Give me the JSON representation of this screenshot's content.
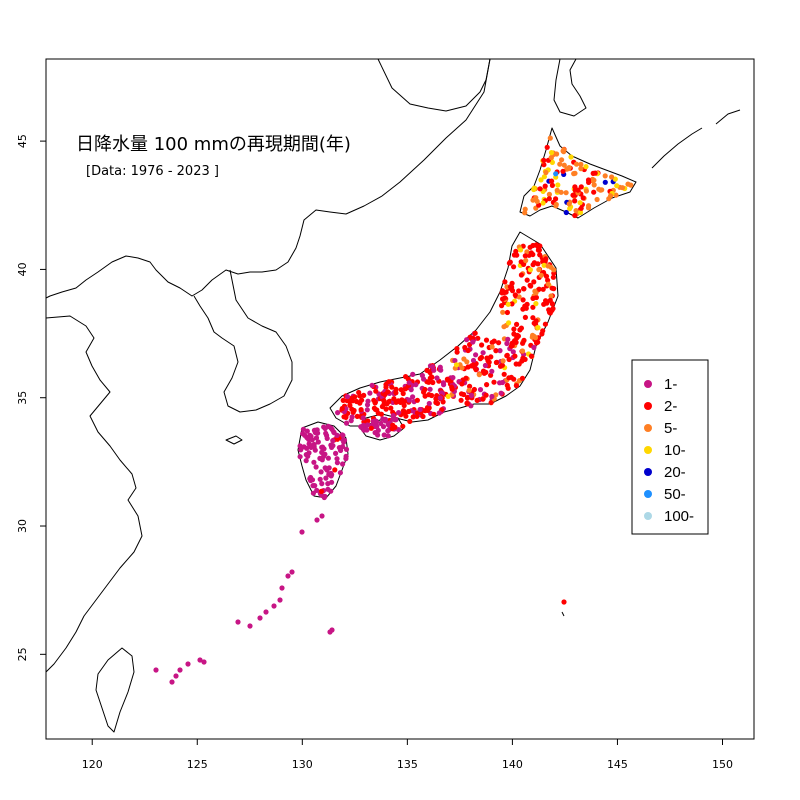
{
  "title": "日降水量 100 mmの再現期間(年)",
  "subtitle": "[Data: 1976 - 2023 ]",
  "axes": {
    "x_ticks": [
      "120",
      "125",
      "130",
      "135",
      "140",
      "145",
      "150"
    ],
    "y_ticks": [
      "25",
      "30",
      "35",
      "40",
      "45"
    ]
  },
  "legend": {
    "placement": "right",
    "items": [
      {
        "label": "1-",
        "color": "#C71585"
      },
      {
        "label": "2-",
        "color": "#FF0000"
      },
      {
        "label": "5-",
        "color": "#FF7F24"
      },
      {
        "label": "10-",
        "color": "#FFD700"
      },
      {
        "label": "20-",
        "color": "#0000CD"
      },
      {
        "label": "50-",
        "color": "#1E90FF"
      },
      {
        "label": "100-",
        "color": "#ADD8E6"
      }
    ]
  }
}
